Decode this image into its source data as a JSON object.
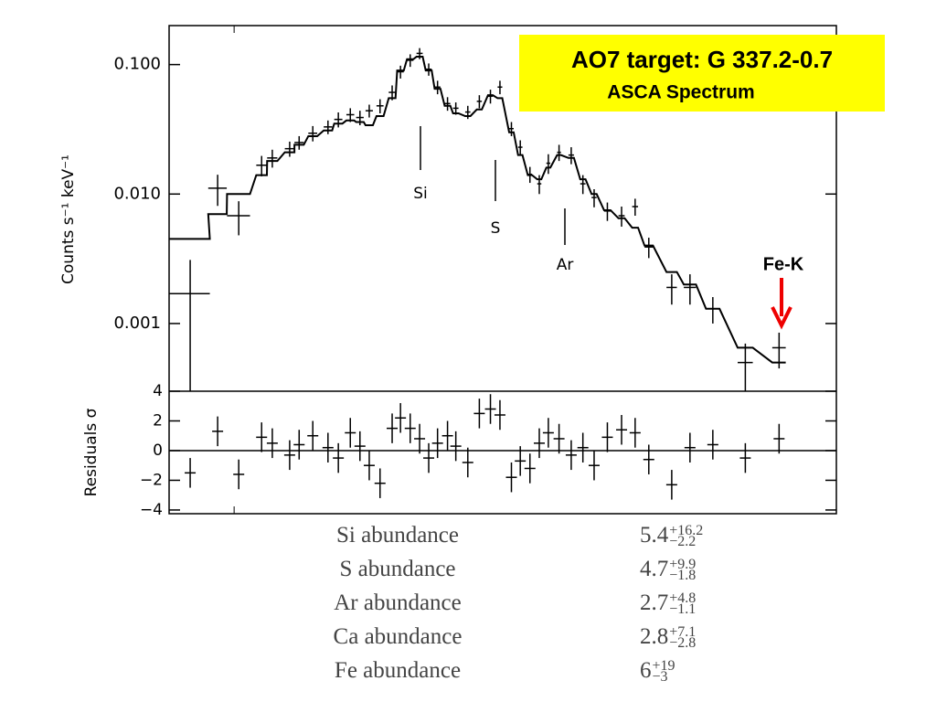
{
  "chart_data": [
    {
      "type": "spectrum",
      "title": "AO7 target: G 337.2-0.7",
      "subtitle": "ASCA Spectrum",
      "y_label": "Counts s⁻¹ keV⁻¹",
      "line_labels": [
        "Si",
        "S",
        "Ar"
      ],
      "arrow_label": "Fe-K",
      "x_log": true,
      "y_log": true,
      "xlim": [
        0.8,
        7.9
      ],
      "ylim": [
        0.0003,
        0.2
      ],
      "yticks": [
        {
          "value": 0.1,
          "label": "0.100"
        },
        {
          "value": 0.01,
          "label": "0.010"
        },
        {
          "value": 0.001,
          "label": "0.001"
        }
      ],
      "x": [
        0.86,
        0.945,
        1.016,
        1.099,
        1.14,
        1.21,
        1.25,
        1.31,
        1.38,
        1.43,
        1.49,
        1.54,
        1.59,
        1.65,
        1.72,
        1.77,
        1.83,
        1.89,
        1.95,
        2.01,
        2.08,
        2.14,
        2.23,
        2.32,
        2.41,
        2.49,
        2.59,
        2.67,
        2.76,
        2.85,
        2.94,
        3.05,
        3.18,
        3.31,
        3.44,
        3.6,
        3.78,
        3.96,
        4.15,
        4.49,
        4.78,
        5.17,
        5.78,
        6.49
      ],
      "xerr": [
        0.06,
        0.03,
        0.04,
        0.02,
        0.02,
        0.02,
        0.02,
        0.02,
        0.02,
        0.02,
        0.02,
        0.02,
        0.02,
        0.02,
        0.02,
        0.02,
        0.02,
        0.02,
        0.02,
        0.02,
        0.02,
        0.02,
        0.02,
        0.02,
        0.02,
        0.02,
        0.02,
        0.02,
        0.02,
        0.02,
        0.02,
        0.02,
        0.03,
        0.03,
        0.03,
        0.04,
        0.04,
        0.04,
        0.06,
        0.08,
        0.1,
        0.12,
        0.15,
        0.15
      ],
      "values": [
        0.0017,
        0.0111,
        0.0068,
        0.0167,
        0.019,
        0.0224,
        0.025,
        0.0295,
        0.033,
        0.0377,
        0.041,
        0.039,
        0.044,
        0.048,
        0.061,
        0.088,
        0.108,
        0.122,
        0.092,
        0.067,
        0.05,
        0.046,
        0.043,
        0.052,
        0.057,
        0.067,
        0.032,
        0.023,
        0.0142,
        0.012,
        0.0173,
        0.021,
        0.02,
        0.012,
        0.0094,
        0.0074,
        0.0068,
        0.008,
        0.0039,
        0.0019,
        0.0019,
        0.0013,
        0.0005,
        0.00065
      ],
      "yerr": [
        0.0014,
        0.003,
        0.002,
        0.003,
        0.003,
        0.003,
        0.003,
        0.004,
        0.004,
        0.005,
        0.005,
        0.005,
        0.005,
        0.006,
        0.008,
        0.01,
        0.012,
        0.012,
        0.01,
        0.008,
        0.006,
        0.005,
        0.005,
        0.006,
        0.007,
        0.008,
        0.004,
        0.003,
        0.002,
        0.002,
        0.003,
        0.003,
        0.003,
        0.002,
        0.0015,
        0.0012,
        0.0012,
        0.0012,
        0.0007,
        0.0005,
        0.0005,
        0.0003,
        0.0002,
        0.0002
      ],
      "model": [
        0.0045,
        0.007,
        0.01,
        0.014,
        0.018,
        0.021,
        0.024,
        0.028,
        0.031,
        0.035,
        0.037,
        0.036,
        0.034,
        0.04,
        0.055,
        0.09,
        0.11,
        0.115,
        0.09,
        0.065,
        0.048,
        0.042,
        0.04,
        0.045,
        0.058,
        0.055,
        0.03,
        0.02,
        0.014,
        0.013,
        0.016,
        0.02,
        0.019,
        0.013,
        0.01,
        0.0075,
        0.0065,
        0.0055,
        0.004,
        0.0025,
        0.002,
        0.0013,
        0.00065,
        0.0005
      ],
      "color": "#000000"
    },
    {
      "type": "residuals",
      "y_label": "Residuals σ",
      "x_log": true,
      "xlim": [
        0.8,
        7.9
      ],
      "ylim": [
        -4.25,
        4
      ],
      "xticks": [
        1
      ],
      "yticks": [
        4,
        2,
        0,
        {
          "value": -2,
          "label": "−2"
        },
        {
          "value": -4,
          "label": "−4"
        }
      ],
      "x": [
        0.86,
        0.945,
        1.016,
        1.099,
        1.14,
        1.21,
        1.25,
        1.31,
        1.38,
        1.43,
        1.49,
        1.54,
        1.59,
        1.65,
        1.72,
        1.77,
        1.83,
        1.89,
        1.95,
        2.01,
        2.08,
        2.14,
        2.23,
        2.32,
        2.41,
        2.49,
        2.59,
        2.67,
        2.76,
        2.85,
        2.94,
        3.05,
        3.18,
        3.31,
        3.44,
        3.6,
        3.78,
        3.96,
        4.15,
        4.49,
        4.78,
        5.17,
        5.78,
        6.49
      ],
      "values": [
        -1.5,
        1.3,
        -1.6,
        0.9,
        0.5,
        -0.3,
        0.4,
        1,
        0.2,
        -0.5,
        1.2,
        0.3,
        -1,
        -2.2,
        1.5,
        2.2,
        1.5,
        0.8,
        -0.5,
        0.5,
        1,
        0.3,
        -0.8,
        2.5,
        2.8,
        2.4,
        -1.8,
        -0.7,
        -1.2,
        0.5,
        1.2,
        0.8,
        -0.3,
        0.2,
        -1,
        0.9,
        1.4,
        1.2,
        -0.6,
        -2.3,
        0.2,
        0.4,
        -0.5,
        0.8
      ],
      "color": "#000000"
    }
  ],
  "table": {
    "rows": [
      {
        "label": "Si abundance",
        "value": "5.4",
        "plus": "+16.2",
        "minus": "−2.2"
      },
      {
        "label": "S abundance",
        "value": "4.7",
        "plus": "+9.9",
        "minus": "−1.8"
      },
      {
        "label": "Ar abundance",
        "value": "2.7",
        "plus": "+4.8",
        "minus": "−1.1"
      },
      {
        "label": "Ca abundance",
        "value": "2.8",
        "plus": "+7.1",
        "minus": "−2.8"
      },
      {
        "label": "Fe abundance",
        "value": "6",
        "plus": "+19",
        "minus": "−3"
      }
    ]
  }
}
